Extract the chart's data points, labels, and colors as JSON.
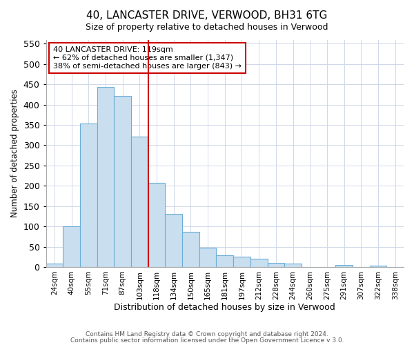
{
  "title": "40, LANCASTER DRIVE, VERWOOD, BH31 6TG",
  "subtitle": "Size of property relative to detached houses in Verwood",
  "xlabel": "Distribution of detached houses by size in Verwood",
  "ylabel": "Number of detached properties",
  "bar_labels": [
    "24sqm",
    "40sqm",
    "55sqm",
    "71sqm",
    "87sqm",
    "103sqm",
    "118sqm",
    "134sqm",
    "150sqm",
    "165sqm",
    "181sqm",
    "197sqm",
    "212sqm",
    "228sqm",
    "244sqm",
    "260sqm",
    "275sqm",
    "291sqm",
    "307sqm",
    "322sqm",
    "338sqm"
  ],
  "bar_heights": [
    8,
    101,
    354,
    443,
    422,
    322,
    208,
    130,
    86,
    48,
    29,
    25,
    20,
    10,
    9,
    0,
    0,
    5,
    0,
    3,
    0
  ],
  "bar_color": "#c9dff0",
  "bar_edge_color": "#6aaed6",
  "ylim": [
    0,
    560
  ],
  "yticks": [
    0,
    50,
    100,
    150,
    200,
    250,
    300,
    350,
    400,
    450,
    500,
    550
  ],
  "vline_color": "#cc0000",
  "annotation_title": "40 LANCASTER DRIVE: 119sqm",
  "annotation_line1": "← 62% of detached houses are smaller (1,347)",
  "annotation_line2": "38% of semi-detached houses are larger (843) →",
  "annotation_box_color": "#ffffff",
  "annotation_box_edge": "#cc0000",
  "footer1": "Contains HM Land Registry data © Crown copyright and database right 2024.",
  "footer2": "Contains public sector information licensed under the Open Government Licence v 3.0.",
  "bg_color": "#ffffff",
  "grid_color": "#d0d8e8"
}
